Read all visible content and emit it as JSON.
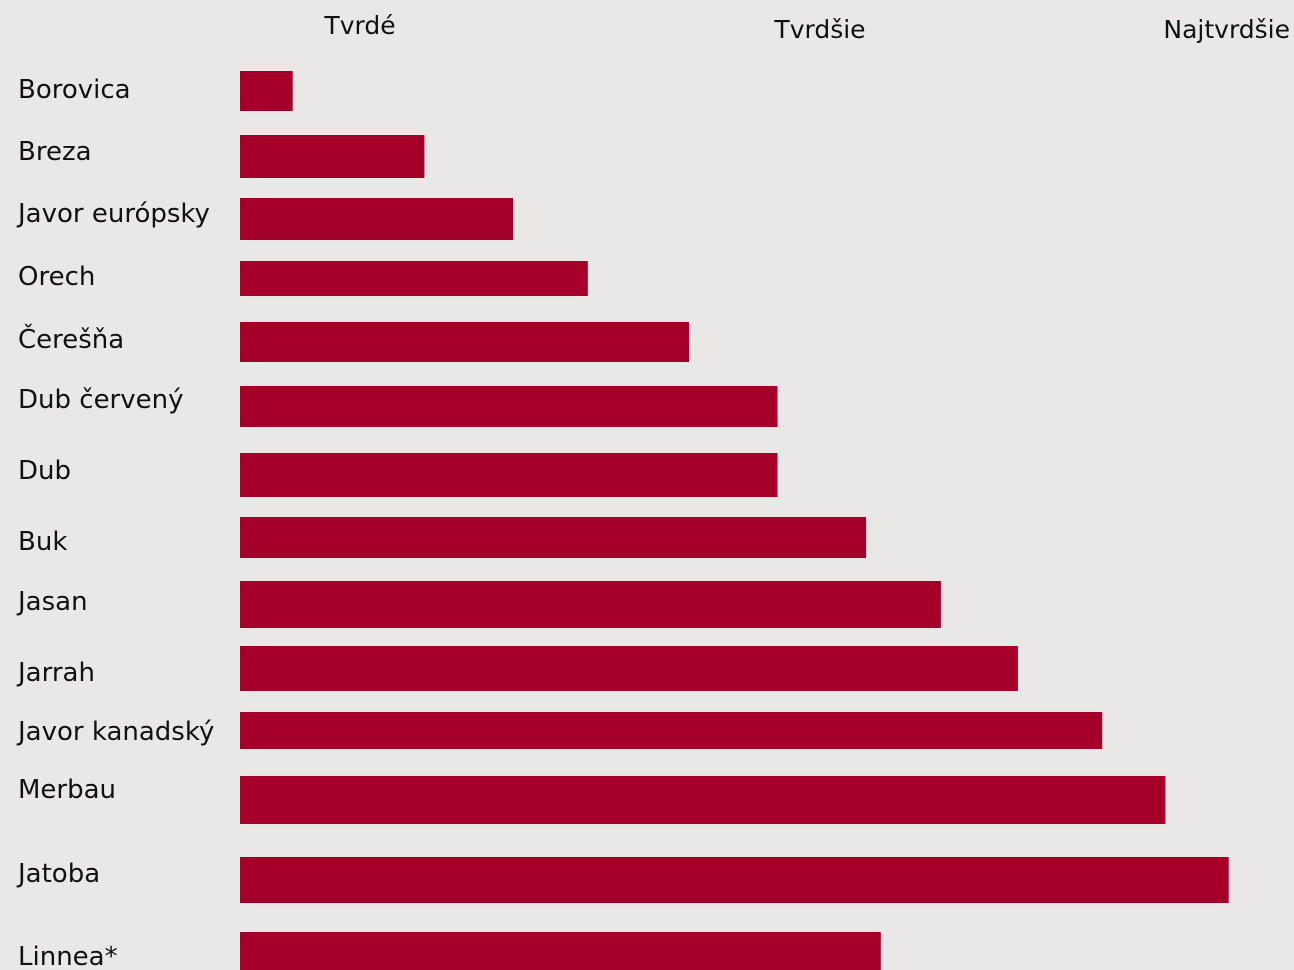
{
  "chart_data": {
    "type": "bar",
    "orientation": "horizontal",
    "title": "",
    "xlabel": "",
    "ylabel": "",
    "scale_labels": [
      "Tvrdé",
      "Tvrdšie",
      "Najtvrdšie"
    ],
    "categories": [
      "Borovica",
      "Breza",
      "Javor európsky",
      "Orech",
      "Čerešňa",
      "Dub červený",
      "Dub",
      "Buk",
      "Jasan",
      "Jarrah",
      "Javor kanadský",
      "Merbau",
      "Jatoba",
      "Linnea*"
    ],
    "values": [
      5,
      17.5,
      25.9,
      33,
      42.6,
      51,
      51,
      59.4,
      66.5,
      73.8,
      81.8,
      87.8,
      93.8,
      60.8
    ],
    "xlim": [
      0,
      100
    ],
    "grid": false,
    "legend": "none",
    "bar_color": "#a4002a"
  }
}
